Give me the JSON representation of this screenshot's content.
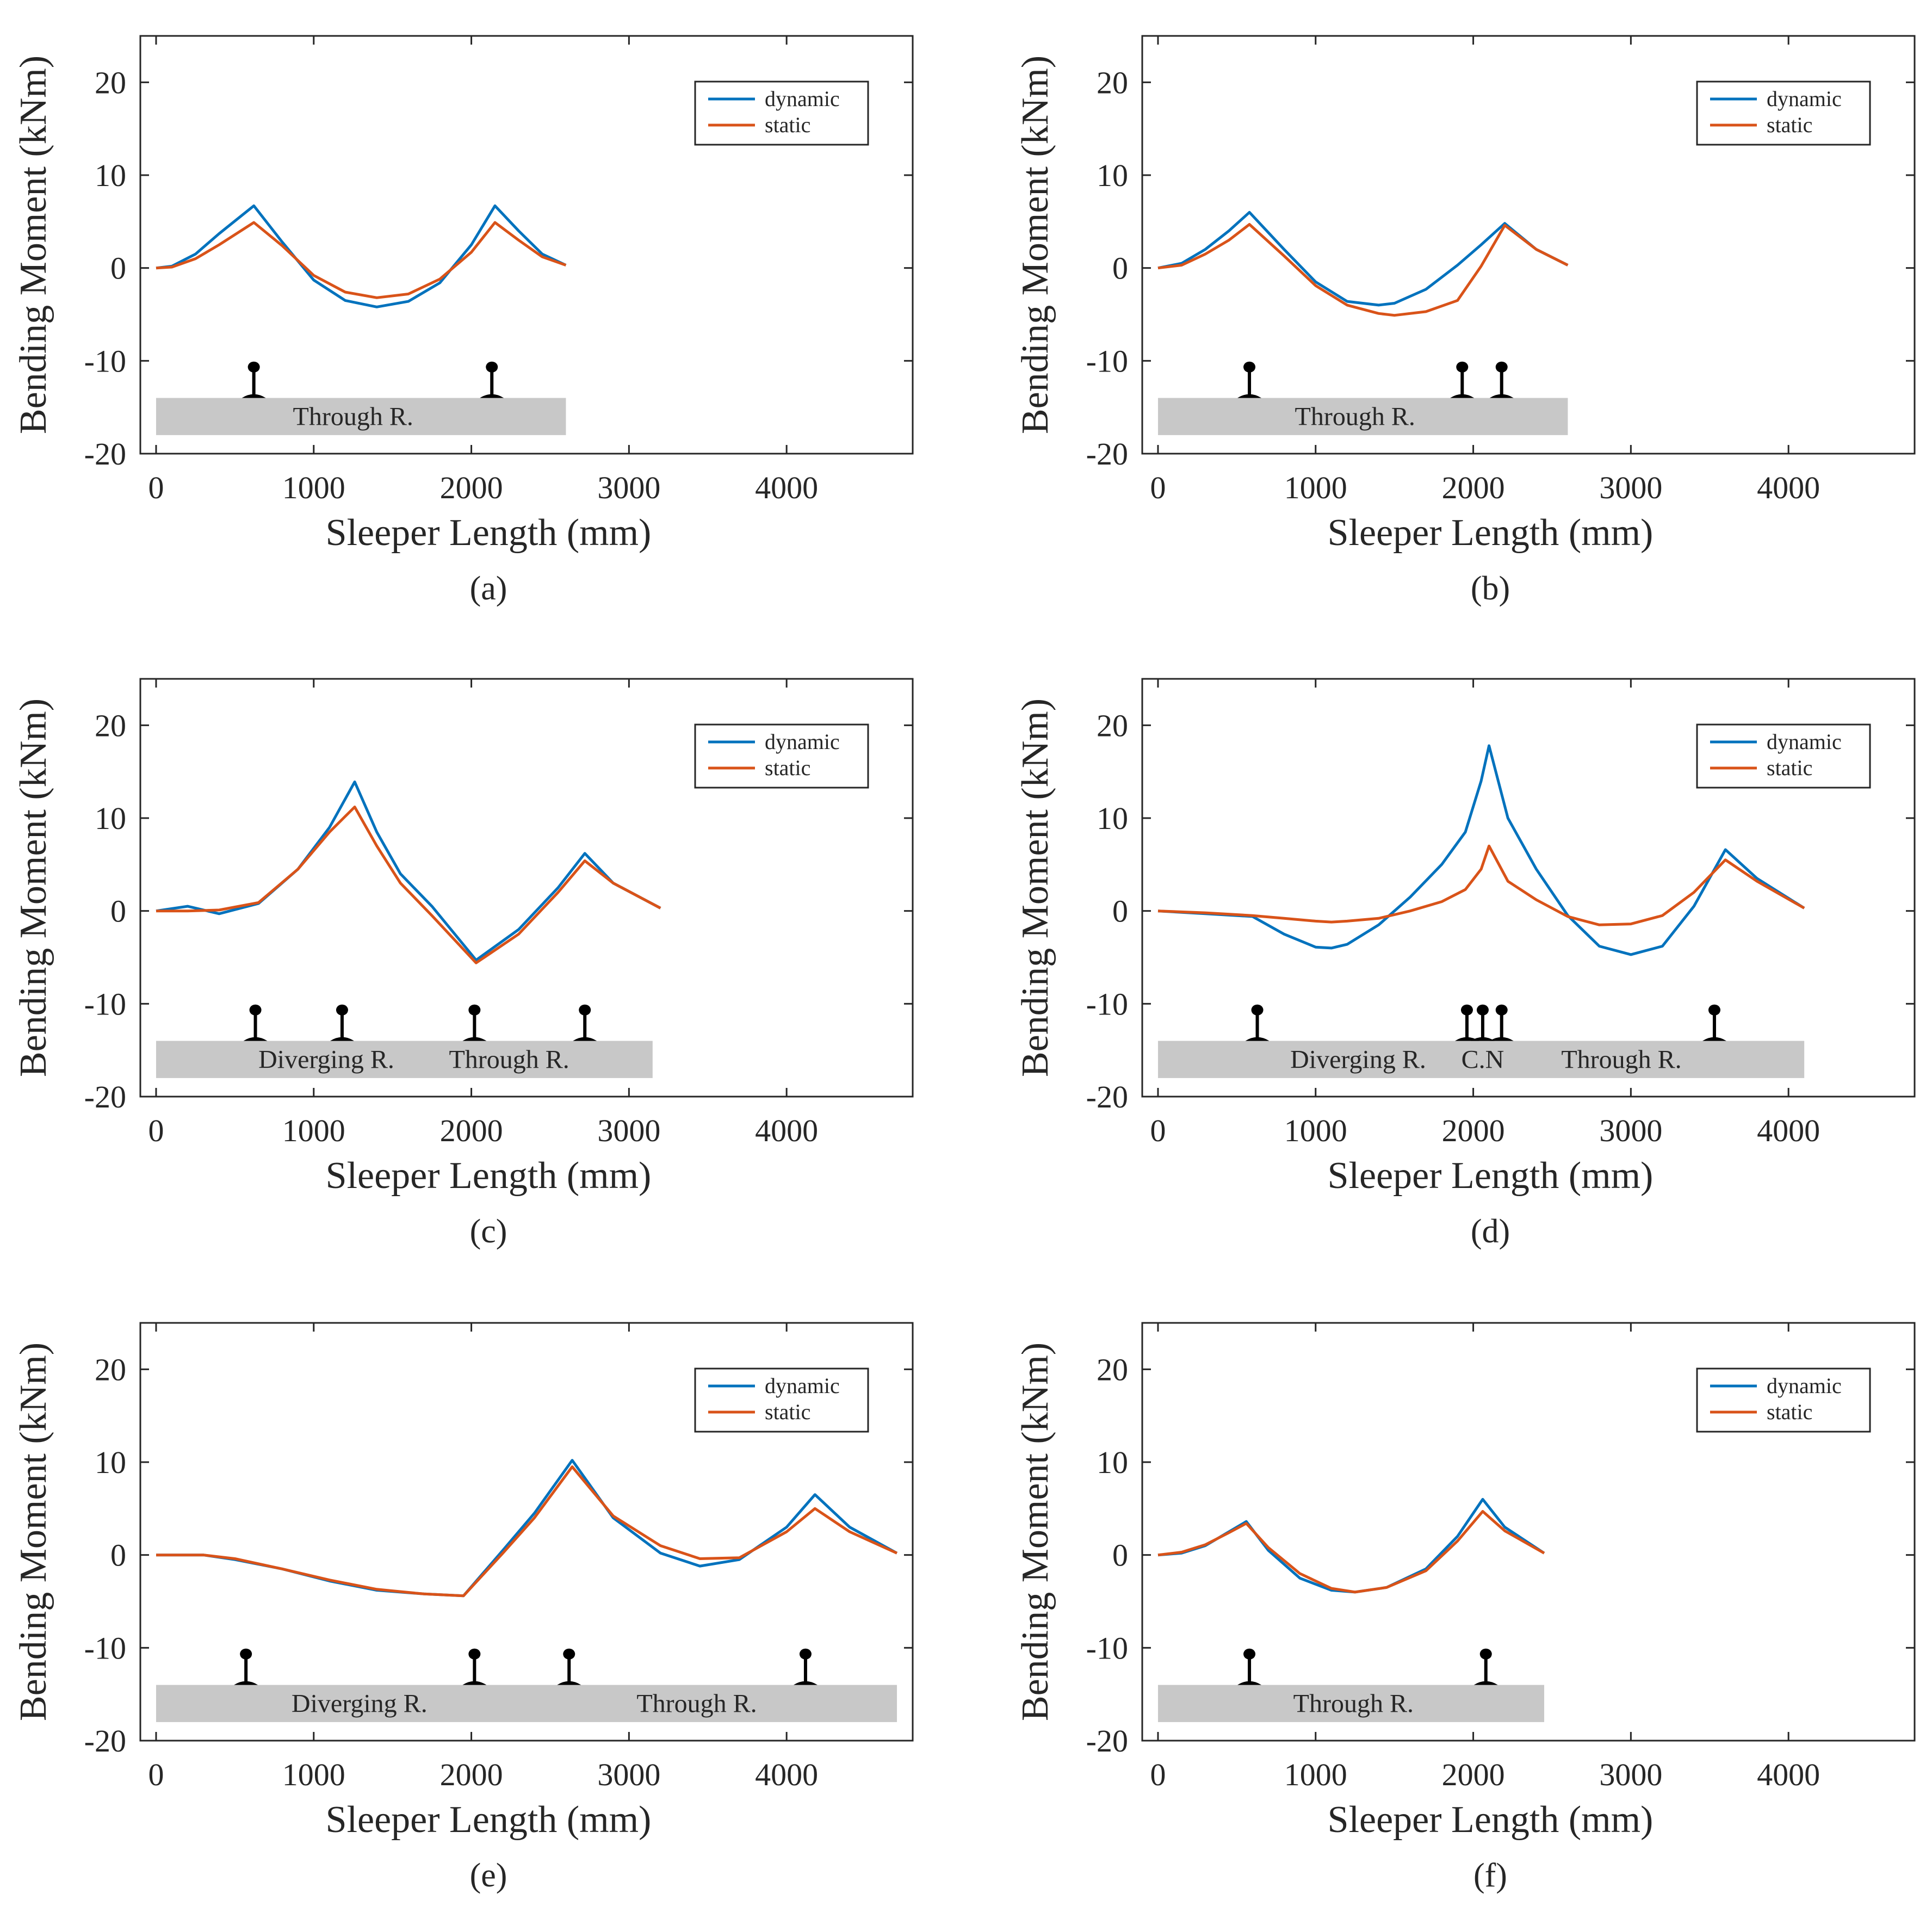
{
  "colors": {
    "dynamic": "#0072BD",
    "static": "#D95319",
    "sleeper_bar": "#C8C8C8",
    "rail": "#000000",
    "axis": "#262626"
  },
  "icons": {
    "rail": "rail-profile-icon"
  },
  "chart_data": [
    {
      "type": "line",
      "caption": "(a)",
      "xlabel": "Sleeper Length (mm)",
      "ylabel": "Bending Moment (kNm)",
      "xlim": [
        -100,
        4800
      ],
      "ylim": [
        -20,
        25
      ],
      "xticks": [
        "0",
        "1000",
        "2000",
        "3000",
        "4000"
      ],
      "yticks": [
        "-20",
        "-10",
        "0",
        "10",
        "20"
      ],
      "grid": false,
      "legend_position": "top-right",
      "sleeper_length": 2600,
      "bar_labels": [
        {
          "text": "Through R.",
          "x": 1250
        }
      ],
      "rail_positions": [
        620,
        2130
      ],
      "series": [
        {
          "name": "dynamic",
          "x": [
            0,
            100,
            250,
            400,
            620,
            800,
            1000,
            1200,
            1400,
            1600,
            1800,
            2000,
            2150,
            2300,
            2450,
            2600
          ],
          "values": [
            0,
            0.2,
            1.5,
            3.7,
            6.7,
            2.8,
            -1.3,
            -3.5,
            -4.2,
            -3.6,
            -1.6,
            2.5,
            6.7,
            4.0,
            1.5,
            0.3
          ]
        },
        {
          "name": "static",
          "x": [
            0,
            100,
            250,
            400,
            620,
            800,
            1000,
            1200,
            1400,
            1600,
            1800,
            2000,
            2150,
            2300,
            2450,
            2600
          ],
          "values": [
            0,
            0.1,
            1.0,
            2.5,
            4.9,
            2.4,
            -0.8,
            -2.6,
            -3.2,
            -2.8,
            -1.2,
            1.7,
            4.9,
            3.0,
            1.2,
            0.3
          ]
        }
      ]
    },
    {
      "type": "line",
      "caption": "(b)",
      "xlabel": "Sleeper Length (mm)",
      "ylabel": "Bending Moment (kNm)",
      "xlim": [
        -100,
        4800
      ],
      "ylim": [
        -20,
        25
      ],
      "xticks": [
        "0",
        "1000",
        "2000",
        "3000",
        "4000"
      ],
      "yticks": [
        "-20",
        "-10",
        "0",
        "10",
        "20"
      ],
      "grid": false,
      "legend_position": "top-right",
      "sleeper_length": 2600,
      "bar_labels": [
        {
          "text": "Through R.",
          "x": 1250
        }
      ],
      "rail_positions": [
        580,
        1930,
        2180
      ],
      "series": [
        {
          "name": "dynamic",
          "x": [
            0,
            150,
            300,
            450,
            580,
            800,
            1000,
            1200,
            1400,
            1500,
            1700,
            1900,
            2050,
            2200,
            2400,
            2600
          ],
          "values": [
            0,
            0.5,
            2.0,
            4.0,
            6.0,
            2.0,
            -1.5,
            -3.6,
            -4.0,
            -3.8,
            -2.3,
            0.3,
            2.5,
            4.8,
            2.0,
            0.3
          ]
        },
        {
          "name": "static",
          "x": [
            0,
            150,
            300,
            450,
            580,
            800,
            1000,
            1200,
            1400,
            1500,
            1700,
            1900,
            2050,
            2200,
            2400,
            2600
          ],
          "values": [
            0,
            0.3,
            1.5,
            3.0,
            4.7,
            1.3,
            -1.9,
            -4.0,
            -4.9,
            -5.1,
            -4.7,
            -3.5,
            0.2,
            4.6,
            2.0,
            0.3
          ]
        }
      ]
    },
    {
      "type": "line",
      "caption": "(c)",
      "xlabel": "Sleeper Length (mm)",
      "ylabel": "Bending Moment (kNm)",
      "xlim": [
        -100,
        4800
      ],
      "ylim": [
        -20,
        25
      ],
      "xticks": [
        "0",
        "1000",
        "2000",
        "3000",
        "4000"
      ],
      "yticks": [
        "-20",
        "-10",
        "0",
        "10",
        "20"
      ],
      "grid": false,
      "legend_position": "top-right",
      "sleeper_length": 3150,
      "bar_labels": [
        {
          "text": "Diverging R.",
          "x": 1080
        },
        {
          "text": "Through R.",
          "x": 2240
        }
      ],
      "rail_positions": [
        630,
        1180,
        2020,
        2720
      ],
      "series": [
        {
          "name": "dynamic",
          "x": [
            0,
            200,
            400,
            650,
            900,
            1100,
            1260,
            1400,
            1550,
            1750,
            2030,
            2300,
            2550,
            2720,
            2900,
            3200
          ],
          "values": [
            0,
            0.5,
            -0.3,
            0.8,
            4.5,
            9.0,
            13.9,
            8.5,
            4.0,
            0.5,
            -5.3,
            -2.0,
            2.5,
            6.2,
            3.0,
            0.3
          ]
        },
        {
          "name": "static",
          "x": [
            0,
            200,
            400,
            650,
            900,
            1100,
            1260,
            1400,
            1550,
            1750,
            2030,
            2300,
            2550,
            2720,
            2900,
            3200
          ],
          "values": [
            0,
            0,
            0.1,
            0.9,
            4.5,
            8.5,
            11.2,
            7.0,
            3.0,
            -0.5,
            -5.6,
            -2.5,
            2.0,
            5.4,
            3.0,
            0.3
          ]
        }
      ]
    },
    {
      "type": "line",
      "caption": "(d)",
      "xlabel": "Sleeper Length (mm)",
      "ylabel": "Bending Moment (kNm)",
      "xlim": [
        -100,
        4800
      ],
      "ylim": [
        -20,
        25
      ],
      "xticks": [
        "0",
        "1000",
        "2000",
        "3000",
        "4000"
      ],
      "yticks": [
        "-20",
        "-10",
        "0",
        "10",
        "20"
      ],
      "grid": false,
      "legend_position": "top-right",
      "sleeper_length": 4100,
      "bar_labels": [
        {
          "text": "Diverging R.",
          "x": 1270
        },
        {
          "text": "C.N",
          "x": 2060
        },
        {
          "text": "Through R.",
          "x": 2940
        }
      ],
      "rail_positions": [
        630,
        1960,
        2060,
        2180,
        3530
      ],
      "series": [
        {
          "name": "dynamic",
          "x": [
            0,
            300,
            600,
            800,
            1000,
            1100,
            1200,
            1400,
            1600,
            1800,
            1950,
            2050,
            2100,
            2220,
            2400,
            2600,
            2800,
            3000,
            3200,
            3400,
            3600,
            3800,
            4100
          ],
          "values": [
            0,
            -0.3,
            -0.6,
            -2.5,
            -3.9,
            -4.0,
            -3.6,
            -1.5,
            1.5,
            5.0,
            8.5,
            14.0,
            17.8,
            10.0,
            4.5,
            -0.5,
            -3.8,
            -4.7,
            -3.8,
            0.5,
            6.6,
            3.5,
            0.3
          ]
        },
        {
          "name": "static",
          "x": [
            0,
            300,
            600,
            800,
            1000,
            1100,
            1200,
            1400,
            1600,
            1800,
            1950,
            2050,
            2100,
            2220,
            2400,
            2600,
            2800,
            3000,
            3200,
            3400,
            3600,
            3800,
            4100
          ],
          "values": [
            0,
            -0.2,
            -0.5,
            -0.8,
            -1.1,
            -1.2,
            -1.1,
            -0.8,
            0,
            1.0,
            2.3,
            4.5,
            7.0,
            3.2,
            1.2,
            -0.6,
            -1.5,
            -1.4,
            -0.5,
            2.0,
            5.5,
            3.2,
            0.3
          ]
        }
      ]
    },
    {
      "type": "line",
      "caption": "(e)",
      "xlabel": "Sleeper Length (mm)",
      "ylabel": "Bending Moment (kNm)",
      "xlim": [
        -100,
        4800
      ],
      "ylim": [
        -20,
        25
      ],
      "xticks": [
        "0",
        "1000",
        "2000",
        "3000",
        "4000"
      ],
      "yticks": [
        "-20",
        "-10",
        "0",
        "10",
        "20"
      ],
      "grid": false,
      "legend_position": "top-right",
      "sleeper_length": 4700,
      "bar_labels": [
        {
          "text": "Diverging R.",
          "x": 1290
        },
        {
          "text": "Through R.",
          "x": 3430
        }
      ],
      "rail_positions": [
        570,
        2020,
        2620,
        4120
      ],
      "series": [
        {
          "name": "dynamic",
          "x": [
            0,
            300,
            500,
            800,
            1100,
            1400,
            1700,
            1950,
            2200,
            2400,
            2640,
            2900,
            3200,
            3450,
            3700,
            4000,
            4180,
            4400,
            4700
          ],
          "values": [
            0,
            0,
            -0.5,
            -1.5,
            -2.8,
            -3.8,
            -4.2,
            -4.4,
            0.5,
            4.5,
            10.2,
            4.0,
            0.2,
            -1.2,
            -0.5,
            3.0,
            6.5,
            3.0,
            0.2
          ]
        },
        {
          "name": "static",
          "x": [
            0,
            300,
            500,
            800,
            1100,
            1400,
            1700,
            1950,
            2200,
            2400,
            2640,
            2900,
            3200,
            3450,
            3700,
            4000,
            4180,
            4400,
            4700
          ],
          "values": [
            0,
            0,
            -0.4,
            -1.5,
            -2.7,
            -3.7,
            -4.2,
            -4.4,
            0.2,
            4.0,
            9.5,
            4.2,
            1.0,
            -0.4,
            -0.3,
            2.5,
            5.0,
            2.5,
            0.2
          ]
        }
      ]
    },
    {
      "type": "line",
      "caption": "(f)",
      "xlabel": "Sleeper Length (mm)",
      "ylabel": "Bending Moment (kNm)",
      "xlim": [
        -100,
        4800
      ],
      "ylim": [
        -20,
        25
      ],
      "xticks": [
        "0",
        "1000",
        "2000",
        "3000",
        "4000"
      ],
      "yticks": [
        "-20",
        "-10",
        "0",
        "10",
        "20"
      ],
      "grid": false,
      "legend_position": "top-right",
      "sleeper_length": 2450,
      "bar_labels": [
        {
          "text": "Through R.",
          "x": 1240
        }
      ],
      "rail_positions": [
        580,
        2080
      ],
      "series": [
        {
          "name": "dynamic",
          "x": [
            0,
            150,
            300,
            450,
            560,
            700,
            900,
            1100,
            1250,
            1450,
            1700,
            1900,
            2060,
            2200,
            2450
          ],
          "values": [
            0,
            0.2,
            1.0,
            2.5,
            3.6,
            0.5,
            -2.5,
            -3.8,
            -4.0,
            -3.5,
            -1.5,
            2.0,
            6.0,
            3.0,
            0.2
          ]
        },
        {
          "name": "static",
          "x": [
            0,
            150,
            300,
            450,
            560,
            700,
            900,
            1100,
            1250,
            1450,
            1700,
            1900,
            2060,
            2200,
            2450
          ],
          "values": [
            0,
            0.3,
            1.1,
            2.4,
            3.4,
            0.8,
            -2.0,
            -3.6,
            -4.0,
            -3.5,
            -1.7,
            1.5,
            4.7,
            2.6,
            0.2
          ]
        }
      ]
    }
  ]
}
